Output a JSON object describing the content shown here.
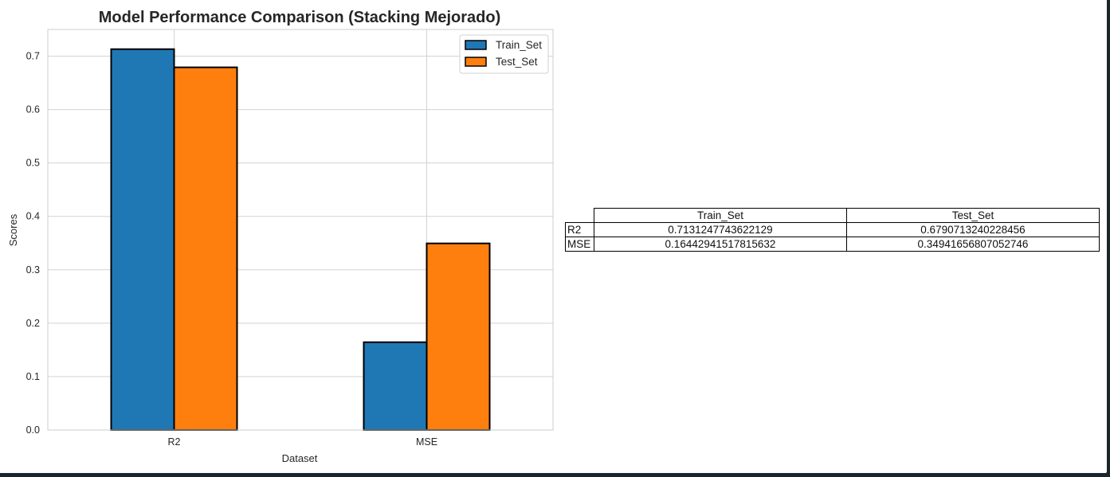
{
  "chart_data": {
    "type": "bar",
    "title": "Model Performance Comparison (Stacking Mejorado)",
    "xlabel": "Dataset",
    "ylabel": "Scores",
    "categories": [
      "R2",
      "MSE"
    ],
    "series": [
      {
        "name": "Train_Set",
        "values": [
          0.7131247743622129,
          0.16442941517815632
        ],
        "color": "#1f77b4"
      },
      {
        "name": "Test_Set",
        "values": [
          0.6790713240228456,
          0.34941656807052746
        ],
        "color": "#ff7f0e"
      }
    ],
    "ylim": [
      0,
      0.75
    ],
    "yticks": [
      "0.0",
      "0.1",
      "0.2",
      "0.3",
      "0.4",
      "0.5",
      "0.6",
      "0.7"
    ],
    "grid": true,
    "legend_position": "top-right"
  },
  "table": {
    "headers": [
      "Train_Set",
      "Test_Set"
    ],
    "rows": [
      {
        "label": "R2",
        "values": [
          "0.7131247743622129",
          "0.6790713240228456"
        ]
      },
      {
        "label": "MSE",
        "values": [
          "0.16442941517815632",
          "0.34941656807052746"
        ]
      }
    ]
  }
}
